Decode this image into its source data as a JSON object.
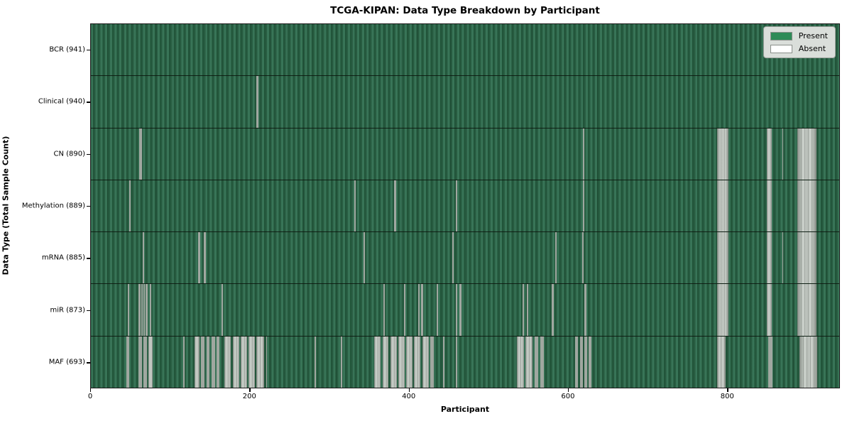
{
  "chart_data": {
    "type": "heatmap",
    "title": "TCGA-KIPAN: Data Type Breakdown by Participant",
    "xlabel": "Participant",
    "ylabel": "Data Type (Total Sample Count)",
    "xlim": [
      0,
      941.5
    ],
    "x_ticks": [
      0,
      200,
      400,
      600,
      800
    ],
    "x_tick_labels": [
      "0",
      "200",
      "400",
      "600",
      "800"
    ],
    "grid": "row-separators",
    "legend_position": "upper right",
    "legend": [
      {
        "label": "Present",
        "color": "#2e8b57"
      },
      {
        "label": "Absent",
        "color": "#ffffff"
      }
    ],
    "colors": {
      "present_face": "#2e8b57",
      "present_edge_dark": "#1f5136",
      "present_edge_light": "#387457",
      "absent_face": "#ffffff",
      "absent_rendered": "#b9bfb9",
      "axis": "#000000"
    },
    "rows": [
      {
        "label": "BCR (941)",
        "data_type": "BCR",
        "total_samples": 941,
        "absent_ranges": []
      },
      {
        "label": "Clinical (940)",
        "data_type": "Clinical",
        "total_samples": 940,
        "absent_ranges": [
          [
            208,
            210
          ]
        ]
      },
      {
        "label": "CN (890)",
        "data_type": "CN",
        "total_samples": 890,
        "absent_ranges": [
          [
            61,
            64
          ],
          [
            618,
            620
          ],
          [
            786,
            801
          ],
          [
            849,
            855
          ],
          [
            868,
            869.5
          ],
          [
            887,
            911
          ]
        ]
      },
      {
        "label": "Methylation (889)",
        "data_type": "Methylation",
        "total_samples": 889,
        "absent_ranges": [
          [
            48,
            50
          ],
          [
            331,
            333
          ],
          [
            381,
            383
          ],
          [
            458,
            460
          ],
          [
            618,
            620
          ],
          [
            786,
            801
          ],
          [
            849,
            855
          ],
          [
            887,
            911
          ]
        ]
      },
      {
        "label": "mRNA (885)",
        "data_type": "mRNA",
        "total_samples": 885,
        "absent_ranges": [
          [
            65,
            67
          ],
          [
            135,
            137
          ],
          [
            142,
            144
          ],
          [
            342,
            344
          ],
          [
            454,
            456
          ],
          [
            583,
            585
          ],
          [
            617,
            619
          ],
          [
            786,
            801
          ],
          [
            849,
            855
          ],
          [
            868,
            869.5
          ],
          [
            887,
            911
          ]
        ]
      },
      {
        "label": "miR (873)",
        "data_type": "miR",
        "total_samples": 873,
        "absent_ranges": [
          [
            46,
            48
          ],
          [
            60,
            62
          ],
          [
            63,
            65
          ],
          [
            66,
            68
          ],
          [
            69,
            71
          ],
          [
            74,
            76
          ],
          [
            164,
            166
          ],
          [
            367,
            369
          ],
          [
            393,
            395
          ],
          [
            411,
            413
          ],
          [
            415,
            417
          ],
          [
            434,
            436
          ],
          [
            458,
            460
          ],
          [
            463,
            465
          ],
          [
            542,
            544
          ],
          [
            547,
            549
          ],
          [
            579,
            581
          ],
          [
            620,
            622
          ],
          [
            786,
            801
          ],
          [
            849,
            855
          ],
          [
            887,
            911
          ]
        ]
      },
      {
        "label": "MAF (693)",
        "data_type": "MAF",
        "total_samples": 693,
        "absent_ranges": [
          [
            45,
            48
          ],
          [
            60,
            64
          ],
          [
            66,
            70
          ],
          [
            72,
            78
          ],
          [
            116,
            118
          ],
          [
            130,
            136
          ],
          [
            138,
            143
          ],
          [
            145,
            149
          ],
          [
            152,
            156
          ],
          [
            158,
            161
          ],
          [
            168,
            176
          ],
          [
            178,
            186
          ],
          [
            188,
            196
          ],
          [
            198,
            206
          ],
          [
            208,
            218
          ],
          [
            220,
            221
          ],
          [
            281,
            283
          ],
          [
            314,
            316
          ],
          [
            356,
            364
          ],
          [
            366,
            374
          ],
          [
            376,
            384
          ],
          [
            386,
            394
          ],
          [
            396,
            404
          ],
          [
            406,
            414
          ],
          [
            416,
            424
          ],
          [
            426,
            431
          ],
          [
            442,
            444
          ],
          [
            458,
            460
          ],
          [
            535,
            544
          ],
          [
            546,
            555
          ],
          [
            557,
            562
          ],
          [
            564,
            569
          ],
          [
            608,
            612
          ],
          [
            614,
            618
          ],
          [
            620,
            623
          ],
          [
            625,
            629
          ],
          [
            786,
            797
          ],
          [
            851,
            856
          ],
          [
            890,
            912
          ]
        ]
      }
    ]
  }
}
